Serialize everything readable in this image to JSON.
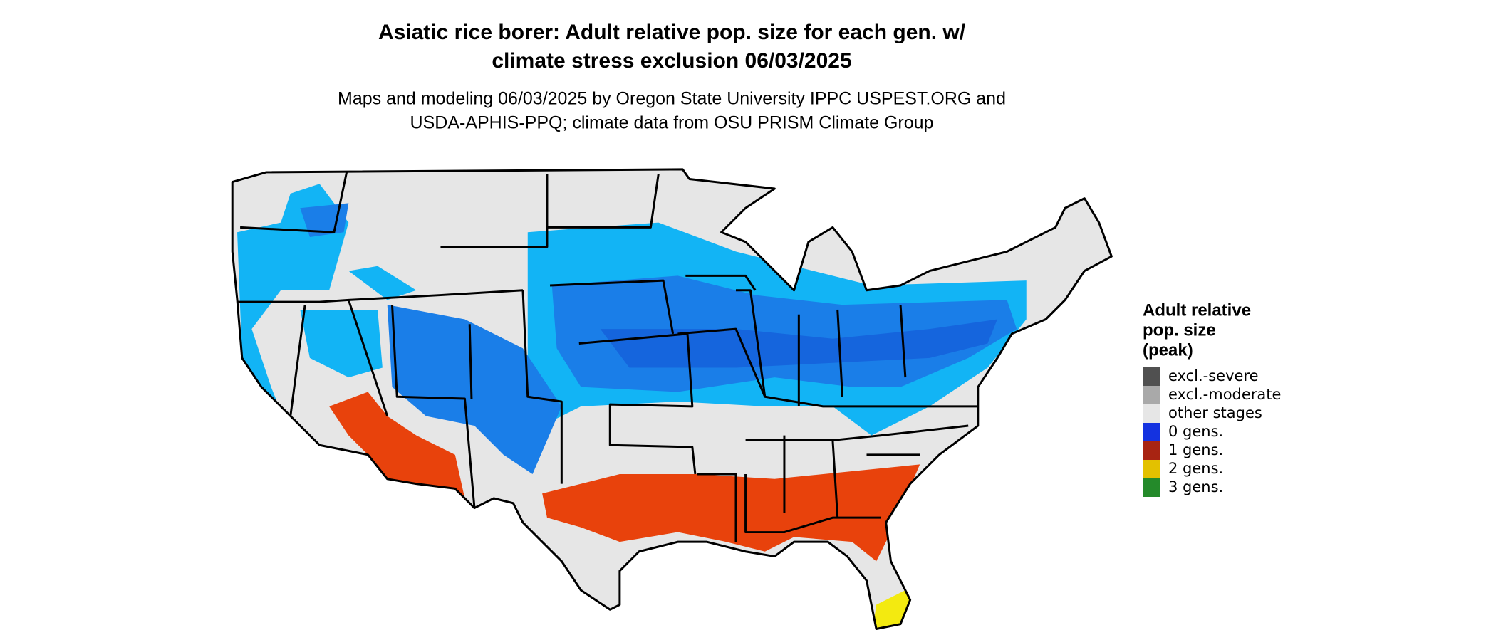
{
  "header": {
    "title": [
      "Asiatic rice borer: Adult relative pop. size for each gen. w/",
      "climate stress exclusion 06/03/2025"
    ],
    "subtitle": [
      "Maps and modeling 06/03/2025 by Oregon State University IPPC USPEST.ORG and",
      "USDA-APHIS-PPQ; climate data from OSU PRISM Climate Group"
    ]
  },
  "legend": {
    "title": [
      "Adult relative",
      "pop. size",
      "(peak)"
    ],
    "items": [
      {
        "label": "excl.-severe",
        "color": "#505050"
      },
      {
        "label": "excl.-moderate",
        "color": "#a9a9a9"
      },
      {
        "label": "other stages",
        "color": "#e6e6e6"
      },
      {
        "label": "0 gens.",
        "color": "#1432e0"
      },
      {
        "label": "1 gens.",
        "color": "#a82412"
      },
      {
        "label": "2 gens.",
        "color": "#e3c100"
      },
      {
        "label": "3 gens.",
        "color": "#248a2a"
      }
    ]
  }
}
